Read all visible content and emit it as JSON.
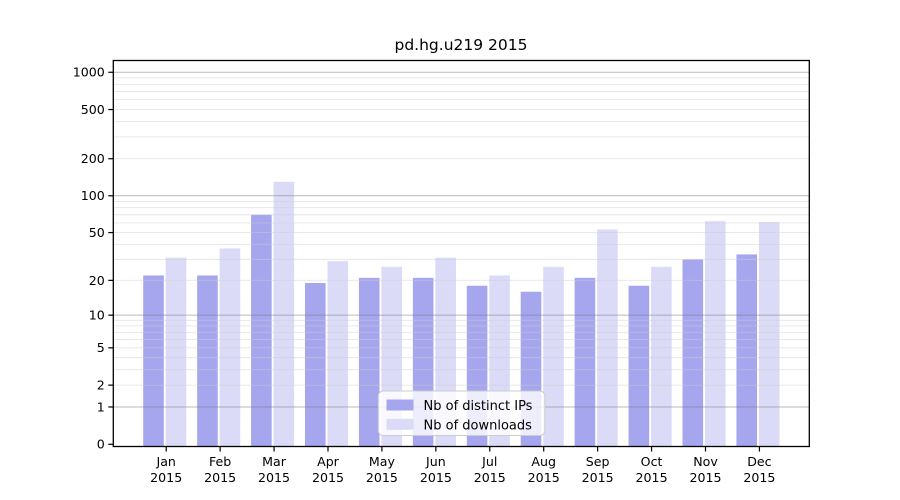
{
  "chart_data": {
    "type": "bar",
    "title": "pd.hg.u219 2015",
    "xlabel": "",
    "ylabel": "",
    "year": "2015",
    "categories": [
      "Jan",
      "Feb",
      "Mar",
      "Apr",
      "May",
      "Jun",
      "Jul",
      "Aug",
      "Sep",
      "Oct",
      "Nov",
      "Dec"
    ],
    "series": [
      {
        "name": "Nb of distinct IPs",
        "color": "#a6a6ee",
        "values": [
          22,
          22,
          70,
          19,
          21,
          21,
          18,
          16,
          21,
          18,
          30,
          33
        ]
      },
      {
        "name": "Nb of downloads",
        "color": "#dbdbf8",
        "values": [
          31,
          37,
          130,
          29,
          26,
          31,
          22,
          26,
          53,
          26,
          62,
          61
        ]
      }
    ],
    "y_axis": {
      "scale": "log1p",
      "ticks": [
        0,
        1,
        2,
        5,
        10,
        20,
        50,
        100,
        200,
        500,
        1000
      ],
      "major_gridlines": [
        1,
        10,
        100,
        1000
      ],
      "ylim": [
        0,
        1240
      ],
      "grid": true
    },
    "legend": {
      "position": "inside-bottom-center",
      "background": "rgba(255,255,255,0.8)",
      "border_color": "#cccccc"
    },
    "colors": {
      "axis": "#000000",
      "major_grid": "#bcbcbc",
      "minor_grid": "#e7e7e7",
      "text": "#000000"
    }
  }
}
